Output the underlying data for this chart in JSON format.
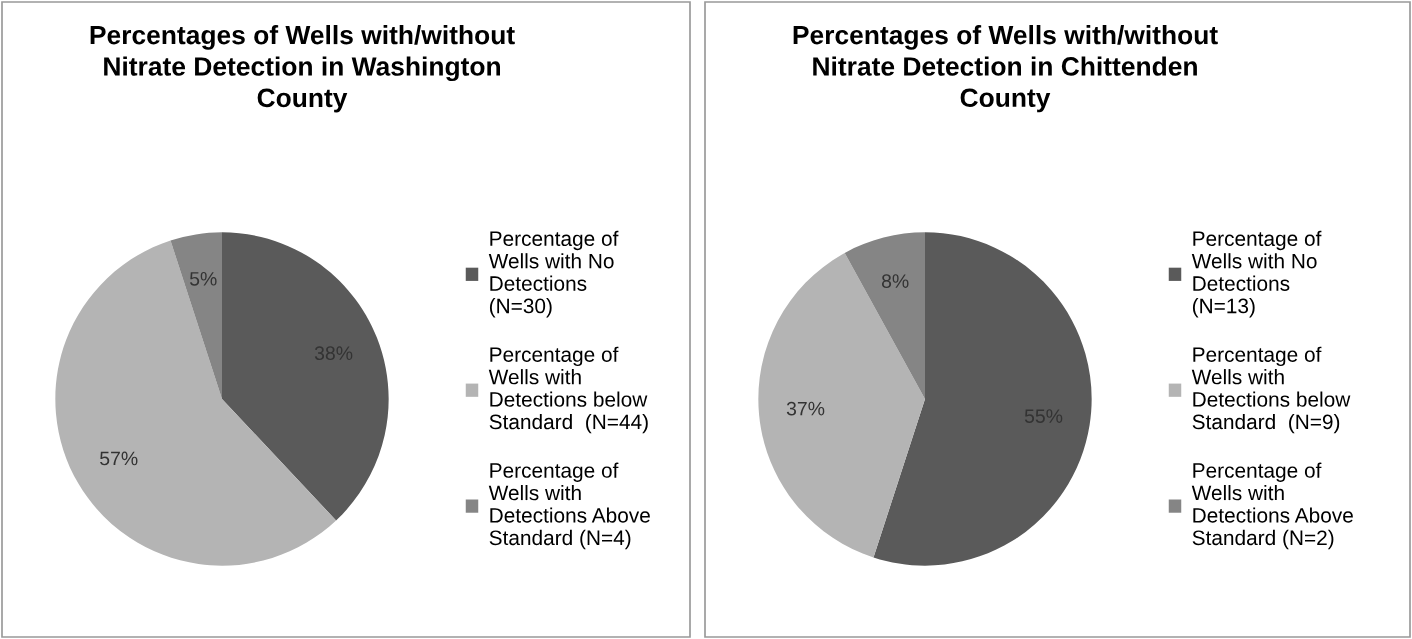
{
  "chart_data": [
    {
      "type": "pie",
      "title": "Percentages of Wells with/without Nitrate Detection in Washington County",
      "categories": [
        "Percentage of Wells with No Detections (N=30)",
        "Percentage of Wells with Detections below Standard  (N=44)",
        "Percentage of Wells with Detections Above Standard (N=4)"
      ],
      "values": [
        38,
        57,
        5
      ],
      "colors": [
        "#5a5a5a",
        "#b4b4b4",
        "#858585"
      ],
      "value_labels": [
        "38%",
        "57%",
        "5%"
      ],
      "legend": "right"
    },
    {
      "type": "pie",
      "title": "Percentages of Wells with/without Nitrate Detection in Chittenden County",
      "categories": [
        "Percentage of Wells with No Detections (N=13)",
        "Percentage of Wells with Detections below Standard  (N=9)",
        "Percentage of Wells with Detections Above Standard (N=2)"
      ],
      "values": [
        55,
        37,
        8
      ],
      "colors": [
        "#5a5a5a",
        "#b4b4b4",
        "#858585"
      ],
      "value_labels": [
        "55%",
        "37%",
        "8%"
      ],
      "legend": "right"
    }
  ]
}
